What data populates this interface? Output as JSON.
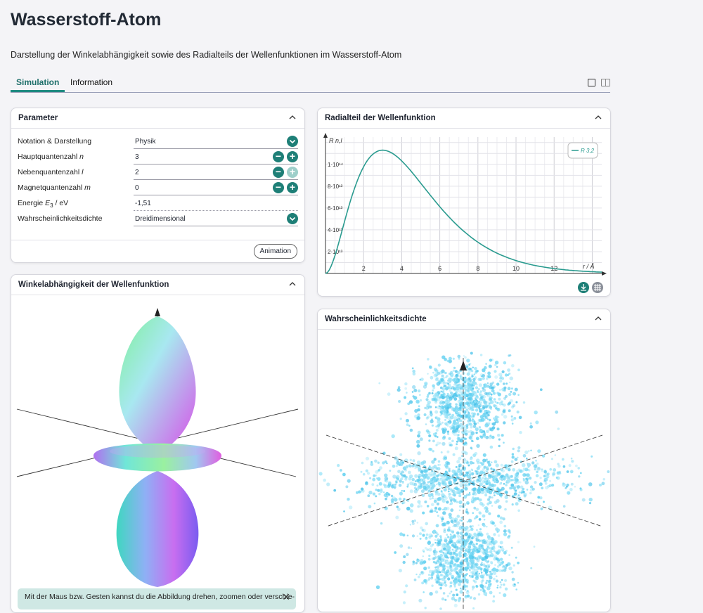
{
  "page": {
    "title": "Wasserstoff-Atom",
    "subtitle": "Darstellung der Winkelabhängigkeit sowie des Radialteils der Wellenfunktionen im Wasserstoff-Atom"
  },
  "tabs": [
    {
      "label": "Simulation",
      "active": true
    },
    {
      "label": "Information",
      "active": false
    }
  ],
  "parameter": {
    "title": "Parameter",
    "rows": [
      {
        "label": "Notation & Darstellung",
        "value": "Physik"
      },
      {
        "label": "Hauptquantenzahl n",
        "value": "3"
      },
      {
        "label": "Nebenquantenzahl l",
        "value": "2"
      },
      {
        "label": "Magnetquantenzahl m",
        "value": "0"
      },
      {
        "label": "Energie E3 / eV",
        "value": "-1,51"
      },
      {
        "label": "Wahrscheinlichkeitsdichte",
        "value": "Dreidimensional"
      }
    ],
    "animation_label": "Animation"
  },
  "radial": {
    "title": "Radialteil der Wellenfunktion"
  },
  "winkel": {
    "title": "Winkelabhängigkeit der Wellenfunktion",
    "hint": "Mit der Maus bzw. Gesten kannst du die Abbildung drehen, zoomen oder verschie-"
  },
  "wahr": {
    "title": "Wahrscheinlichkeitsdichte"
  },
  "colors": {
    "accent": "#1e7f77",
    "curve": "#2a9b8f",
    "points": "#6fd3f0"
  },
  "chart_data": {
    "type": "line",
    "xlabel": "r / Å",
    "ylabel": "R n,l",
    "legend": "R 3,2",
    "xlim": [
      0,
      14.5
    ],
    "ylim": [
      0,
      125000000000000.0
    ],
    "x_ticks": [
      2,
      4,
      6,
      8,
      10,
      12
    ],
    "x_tick_labels": [
      "2",
      "4",
      "6",
      "8",
      "10",
      "12"
    ],
    "y_ticks": [
      20000000000000.0,
      40000000000000.0,
      60000000000000.0,
      80000000000000.0,
      100000000000000.0
    ],
    "y_tick_labels": [
      "2·10¹³",
      "4·10¹³",
      "6·10¹³",
      "8·10¹³",
      "1·10¹⁴"
    ],
    "series": [
      {
        "name": "R 3,2",
        "function": "r^2 * exp(-2r/3)",
        "peak_r": 3.0,
        "peak_value": 113000000000000.0
      }
    ]
  }
}
